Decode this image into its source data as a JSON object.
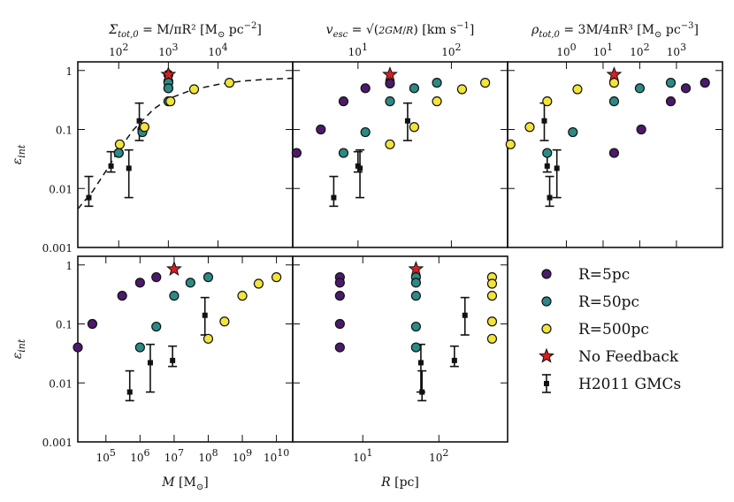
{
  "chart_data": {
    "type": "scatter",
    "series_styles": {
      "R=5pc": {
        "color": "#4b1a6b"
      },
      "R=50pc": {
        "color": "#2b8a86"
      },
      "R=500pc": {
        "color": "#f2e43a"
      },
      "No Feedback": {
        "color": "#d62020"
      },
      "H2011 GMCs": {
        "color": "#111111"
      }
    },
    "legend": {
      "placement": "bottom-right",
      "entries": [
        {
          "label": "R=5pc",
          "marker": "circle",
          "color": "#4b1a6b"
        },
        {
          "label": "R=50pc",
          "marker": "circle",
          "color": "#2b8a86"
        },
        {
          "label": "R=500pc",
          "marker": "circle",
          "color": "#f2e43a"
        },
        {
          "label": "No Feedback",
          "marker": "star",
          "color": "#d62020"
        },
        {
          "label": "H2011 GMCs",
          "marker": "errorbar",
          "color": "#111111"
        }
      ]
    },
    "y_axis": {
      "scale": "log",
      "range": [
        0.001,
        1.4
      ],
      "ticks": [
        {
          "value": 0.001,
          "label": "0.001"
        },
        {
          "value": 0.01,
          "label": "0.01"
        },
        {
          "value": 0.1,
          "label": "0.1"
        },
        {
          "value": 1,
          "label": "1"
        }
      ]
    },
    "panels": [
      {
        "id": "surface-density",
        "row": 0,
        "col": 0,
        "ylabel": "ε",
        "ylabel_sub": "int",
        "top_axis": {
          "label_main": "Σ",
          "label_sub": "tot,0",
          "label_rest": " = M/πR² [M",
          "label_sun_sub": "⊙",
          "label_unit": " pc",
          "label_sup": "−2",
          "label_close": "]",
          "scale": "log",
          "range": [
            15,
            320000
          ],
          "ticks": [
            {
              "value": 100,
              "base": "10",
              "exp": "2"
            },
            {
              "value": 1000,
              "base": "10",
              "exp": "3"
            },
            {
              "value": 10000,
              "base": "10",
              "exp": "4"
            }
          ]
        },
        "dashed_curve": [
          [
            15,
            0.0045
          ],
          [
            30,
            0.009
          ],
          [
            60,
            0.022
          ],
          [
            100,
            0.045
          ],
          [
            200,
            0.1
          ],
          [
            500,
            0.22
          ],
          [
            1000,
            0.33
          ],
          [
            3000,
            0.47
          ],
          [
            10000,
            0.58
          ],
          [
            30000,
            0.66
          ],
          [
            100000,
            0.71
          ],
          [
            320000,
            0.74
          ]
        ],
        "points": [
          {
            "series": "R=5pc",
            "x": 1000,
            "y": 0.85
          },
          {
            "series": "R=5pc",
            "x": 1000,
            "y": 0.65
          },
          {
            "series": "R=5pc",
            "x": 1000,
            "y": 0.5
          },
          {
            "series": "R=5pc",
            "x": 300,
            "y": 0.1
          },
          {
            "series": "R=5pc",
            "x": 100,
            "y": 0.04
          },
          {
            "series": "R=50pc",
            "x": 1000,
            "y": 0.62
          },
          {
            "series": "R=50pc",
            "x": 1000,
            "y": 0.5
          },
          {
            "series": "R=50pc",
            "x": 1000,
            "y": 0.3
          },
          {
            "series": "R=50pc",
            "x": 300,
            "y": 0.09
          },
          {
            "series": "R=50pc",
            "x": 100,
            "y": 0.04
          },
          {
            "series": "R=500pc",
            "x": 17000,
            "y": 0.62
          },
          {
            "series": "R=500pc",
            "x": 3300,
            "y": 0.48
          },
          {
            "series": "R=500pc",
            "x": 1100,
            "y": 0.3
          },
          {
            "series": "R=500pc",
            "x": 330,
            "y": 0.11
          },
          {
            "series": "R=500pc",
            "x": 105,
            "y": 0.056
          },
          {
            "series": "No Feedback",
            "x": 1000,
            "y": 0.85
          }
        ],
        "errorbars": [
          {
            "x": 25,
            "y": 0.007,
            "lo": 0.005,
            "hi": 0.016
          },
          {
            "x": 70,
            "y": 0.024,
            "lo": 0.019,
            "hi": 0.042
          },
          {
            "x": 160,
            "y": 0.022,
            "lo": 0.007,
            "hi": 0.045
          },
          {
            "x": 260,
            "y": 0.14,
            "lo": 0.065,
            "hi": 0.28
          }
        ]
      },
      {
        "id": "escape-velocity",
        "row": 0,
        "col": 1,
        "top_axis": {
          "label_main": "v",
          "label_sub": "esc",
          "label_rest": " = ",
          "label_frac_num": "2GM",
          "label_frac_den": "R",
          "label_unit": " [km s",
          "label_sup": "−1",
          "label_close": "]",
          "scale": "log",
          "range": [
            2,
            400
          ],
          "ticks": [
            {
              "value": 10,
              "base": "10",
              "exp": "1"
            },
            {
              "value": 100,
              "base": "10",
              "exp": "2"
            }
          ]
        },
        "points": [
          {
            "series": "R=5pc",
            "x": 2.2,
            "y": 0.04
          },
          {
            "series": "R=5pc",
            "x": 4,
            "y": 0.1
          },
          {
            "series": "R=5pc",
            "x": 7,
            "y": 0.3
          },
          {
            "series": "R=5pc",
            "x": 12,
            "y": 0.5
          },
          {
            "series": "R=5pc",
            "x": 22,
            "y": 0.6
          },
          {
            "series": "R=50pc",
            "x": 7,
            "y": 0.04
          },
          {
            "series": "R=50pc",
            "x": 12,
            "y": 0.09
          },
          {
            "series": "R=50pc",
            "x": 22,
            "y": 0.3
          },
          {
            "series": "R=50pc",
            "x": 40,
            "y": 0.5
          },
          {
            "series": "R=50pc",
            "x": 70,
            "y": 0.62
          },
          {
            "series": "R=500pc",
            "x": 22,
            "y": 0.056
          },
          {
            "series": "R=500pc",
            "x": 40,
            "y": 0.11
          },
          {
            "series": "R=500pc",
            "x": 70,
            "y": 0.3
          },
          {
            "series": "R=500pc",
            "x": 130,
            "y": 0.48
          },
          {
            "series": "R=500pc",
            "x": 230,
            "y": 0.62
          },
          {
            "series": "No Feedback",
            "x": 22,
            "y": 0.85
          }
        ],
        "errorbars": [
          {
            "x": 5.5,
            "y": 0.007,
            "lo": 0.005,
            "hi": 0.016
          },
          {
            "x": 10,
            "y": 0.024,
            "lo": 0.019,
            "hi": 0.042
          },
          {
            "x": 10.5,
            "y": 0.022,
            "lo": 0.007,
            "hi": 0.045
          },
          {
            "x": 34,
            "y": 0.14,
            "lo": 0.065,
            "hi": 0.28
          }
        ]
      },
      {
        "id": "volume-density",
        "row": 0,
        "col": 2,
        "top_axis": {
          "label_main": "ρ",
          "label_sub": "tot,0",
          "label_rest": " = 3M/4πR³ [M",
          "label_sun_sub": "⊙",
          "label_unit": " pc",
          "label_sup": "−3",
          "label_close": "]",
          "scale": "log",
          "range": [
            0.025,
            18000
          ],
          "ticks": [
            {
              "value": 1,
              "base": "10",
              "exp": "0"
            },
            {
              "value": 10,
              "base": "10",
              "exp": "1"
            },
            {
              "value": 100,
              "base": "10",
              "exp": "2"
            },
            {
              "value": 1000,
              "base": "10",
              "exp": "3"
            }
          ]
        },
        "points": [
          {
            "series": "R=5pc",
            "x": 20,
            "y": 0.04
          },
          {
            "series": "R=5pc",
            "x": 110,
            "y": 0.1
          },
          {
            "series": "R=5pc",
            "x": 700,
            "y": 0.3
          },
          {
            "series": "R=5pc",
            "x": 1800,
            "y": 0.5
          },
          {
            "series": "R=5pc",
            "x": 6000,
            "y": 0.62
          },
          {
            "series": "R=50pc",
            "x": 0.3,
            "y": 0.04
          },
          {
            "series": "R=50pc",
            "x": 1.5,
            "y": 0.09
          },
          {
            "series": "R=50pc",
            "x": 20,
            "y": 0.3
          },
          {
            "series": "R=50pc",
            "x": 100,
            "y": 0.5
          },
          {
            "series": "R=50pc",
            "x": 700,
            "y": 0.62
          },
          {
            "series": "R=500pc",
            "x": 0.03,
            "y": 0.056
          },
          {
            "series": "R=500pc",
            "x": 0.1,
            "y": 0.11
          },
          {
            "series": "R=500pc",
            "x": 0.3,
            "y": 0.3
          },
          {
            "series": "R=500pc",
            "x": 2,
            "y": 0.48
          },
          {
            "series": "R=500pc",
            "x": 20,
            "y": 0.62
          },
          {
            "series": "No Feedback",
            "x": 20,
            "y": 0.85
          }
        ],
        "errorbars": [
          {
            "x": 0.35,
            "y": 0.007,
            "lo": 0.005,
            "hi": 0.016
          },
          {
            "x": 0.3,
            "y": 0.024,
            "lo": 0.019,
            "hi": 0.042
          },
          {
            "x": 0.55,
            "y": 0.022,
            "lo": 0.007,
            "hi": 0.045
          },
          {
            "x": 0.25,
            "y": 0.14,
            "lo": 0.065,
            "hi": 0.28
          }
        ]
      },
      {
        "id": "mass",
        "row": 1,
        "col": 0,
        "ylabel": "ε",
        "ylabel_sub": "int",
        "bottom_axis": {
          "label_main": "M",
          "label_rest": " [M",
          "label_sun_sub": "⊙",
          "label_close": "]",
          "scale": "log",
          "range": [
            15000,
            30000000000
          ],
          "ticks": [
            {
              "value": 100000,
              "base": "10",
              "exp": "5"
            },
            {
              "value": 1000000,
              "base": "10",
              "exp": "6"
            },
            {
              "value": 10000000,
              "base": "10",
              "exp": "7"
            },
            {
              "value": 100000000,
              "base": "10",
              "exp": "8"
            },
            {
              "value": 1000000000,
              "base": "10",
              "exp": "9"
            },
            {
              "value": 10000000000,
              "base": "10",
              "exp": "10"
            }
          ]
        },
        "points": [
          {
            "series": "R=5pc",
            "x": 15000,
            "y": 0.04
          },
          {
            "series": "R=5pc",
            "x": 40000,
            "y": 0.1
          },
          {
            "series": "R=5pc",
            "x": 300000,
            "y": 0.3
          },
          {
            "series": "R=5pc",
            "x": 1000000,
            "y": 0.5
          },
          {
            "series": "R=5pc",
            "x": 3000000,
            "y": 0.62
          },
          {
            "series": "R=50pc",
            "x": 1000000,
            "y": 0.04
          },
          {
            "series": "R=50pc",
            "x": 3000000,
            "y": 0.09
          },
          {
            "series": "R=50pc",
            "x": 10000000,
            "y": 0.3
          },
          {
            "series": "R=50pc",
            "x": 30000000,
            "y": 0.5
          },
          {
            "series": "R=50pc",
            "x": 100000000,
            "y": 0.62
          },
          {
            "series": "R=500pc",
            "x": 100000000,
            "y": 0.056
          },
          {
            "series": "R=500pc",
            "x": 300000000,
            "y": 0.11
          },
          {
            "series": "R=500pc",
            "x": 1000000000,
            "y": 0.3
          },
          {
            "series": "R=500pc",
            "x": 3000000000,
            "y": 0.48
          },
          {
            "series": "R=500pc",
            "x": 10000000000,
            "y": 0.62
          },
          {
            "series": "No Feedback",
            "x": 10000000,
            "y": 0.85
          }
        ],
        "errorbars": [
          {
            "x": 500000,
            "y": 0.007,
            "lo": 0.005,
            "hi": 0.016
          },
          {
            "x": 2000000,
            "y": 0.022,
            "lo": 0.007,
            "hi": 0.045
          },
          {
            "x": 9000000,
            "y": 0.024,
            "lo": 0.019,
            "hi": 0.042
          },
          {
            "x": 80000000,
            "y": 0.14,
            "lo": 0.065,
            "hi": 0.28
          }
        ]
      },
      {
        "id": "radius",
        "row": 1,
        "col": 1,
        "bottom_axis": {
          "label_main": "R",
          "label_rest": " [pc]",
          "scale": "log",
          "range": [
            1.2,
            800
          ],
          "ticks": [
            {
              "value": 10,
              "base": "10",
              "exp": "1"
            },
            {
              "value": 100,
              "base": "10",
              "exp": "2"
            }
          ]
        },
        "points": [
          {
            "series": "R=5pc",
            "x": 5,
            "y": 0.62
          },
          {
            "series": "R=5pc",
            "x": 5,
            "y": 0.5
          },
          {
            "series": "R=5pc",
            "x": 5,
            "y": 0.3
          },
          {
            "series": "R=5pc",
            "x": 5,
            "y": 0.1
          },
          {
            "series": "R=5pc",
            "x": 5,
            "y": 0.04
          },
          {
            "series": "R=50pc",
            "x": 50,
            "y": 0.62
          },
          {
            "series": "R=50pc",
            "x": 50,
            "y": 0.5
          },
          {
            "series": "R=50pc",
            "x": 50,
            "y": 0.3
          },
          {
            "series": "R=50pc",
            "x": 50,
            "y": 0.09
          },
          {
            "series": "R=50pc",
            "x": 50,
            "y": 0.04
          },
          {
            "series": "R=500pc",
            "x": 500,
            "y": 0.62
          },
          {
            "series": "R=500pc",
            "x": 500,
            "y": 0.48
          },
          {
            "series": "R=500pc",
            "x": 500,
            "y": 0.3
          },
          {
            "series": "R=500pc",
            "x": 500,
            "y": 0.11
          },
          {
            "series": "R=500pc",
            "x": 500,
            "y": 0.056
          },
          {
            "series": "No Feedback",
            "x": 50,
            "y": 0.85
          }
        ],
        "errorbars": [
          {
            "x": 60,
            "y": 0.007,
            "lo": 0.005,
            "hi": 0.016
          },
          {
            "x": 58,
            "y": 0.022,
            "lo": 0.007,
            "hi": 0.045
          },
          {
            "x": 160,
            "y": 0.024,
            "lo": 0.019,
            "hi": 0.042
          },
          {
            "x": 220,
            "y": 0.14,
            "lo": 0.065,
            "hi": 0.28
          }
        ]
      }
    ]
  }
}
